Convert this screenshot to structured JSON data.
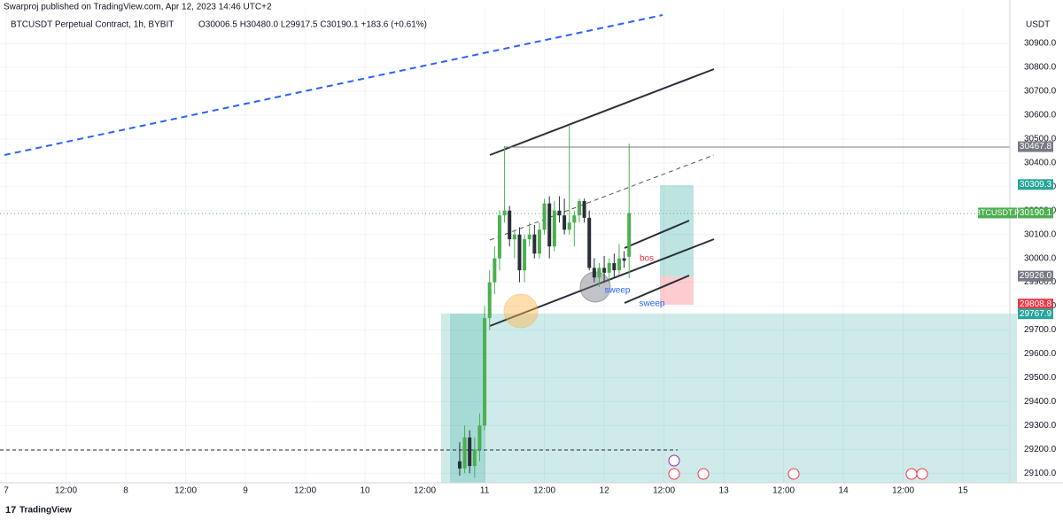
{
  "chart_data": {
    "type": "candlestick",
    "publisher": "Swarproj published on TradingView.com, Apr 12, 2023 14:46 UTC+2",
    "title": "BTCUSDT Perpetual Contract, 1h, BYBIT",
    "ohlc_summary": "O30006.5 H30480.0 L29917.5 C30190.1 +183.6 (+0.61%)",
    "unit": "USDT",
    "brand": "TradingView",
    "up_color": "#4caf50",
    "down_color": "#2a2e39",
    "grid": true,
    "x": [
      91,
      92,
      93,
      94,
      95,
      96,
      97,
      98,
      99,
      100,
      101,
      102,
      103,
      104,
      105,
      106,
      107,
      108,
      109,
      110,
      111,
      112,
      113,
      114,
      115,
      116,
      117,
      118,
      119,
      120,
      121,
      122,
      123,
      124,
      125
    ],
    "open": [
      29150,
      29120,
      29250,
      29130,
      29200,
      29300,
      29750,
      29900,
      30000,
      30180,
      30200,
      30080,
      30100,
      29950,
      30080,
      30100,
      30020,
      30120,
      30230,
      30050,
      30200,
      30180,
      30120,
      30150,
      30180,
      30240,
      30170,
      29960,
      29920,
      29960,
      29940,
      29980,
      29950,
      30000,
      30006.5
    ],
    "high": [
      29230,
      29300,
      29280,
      29250,
      29350,
      29800,
      29950,
      30050,
      30200,
      30470,
      30220,
      30120,
      30130,
      30100,
      30150,
      30140,
      30150,
      30250,
      30260,
      30240,
      30260,
      30250,
      30560,
      30200,
      30250,
      30250,
      30200,
      30000,
      29980,
      30010,
      30000,
      30020,
      30060,
      30030,
      30480.0
    ],
    "low": [
      29090,
      29100,
      29100,
      29080,
      29150,
      29280,
      29700,
      29850,
      29950,
      30150,
      30050,
      30000,
      29900,
      29900,
      30050,
      30000,
      30000,
      30100,
      30000,
      30030,
      30150,
      30100,
      30100,
      30050,
      30150,
      30150,
      29950,
      29900,
      29880,
      29900,
      29900,
      29920,
      29930,
      29960,
      29917.5
    ],
    "close": [
      29120,
      29250,
      29130,
      29200,
      29300,
      29750,
      29900,
      30000,
      30180,
      30200,
      30080,
      30100,
      29950,
      30080,
      30100,
      30020,
      30120,
      30230,
      30050,
      30200,
      30180,
      30120,
      30150,
      30180,
      30240,
      30170,
      29960,
      29920,
      29960,
      29940,
      29980,
      29950,
      30000,
      29990,
      30190.1
    ],
    "xlim": [
      -1.25,
      201.4
    ],
    "xticks": [
      {
        "value": 0,
        "label": "7"
      },
      {
        "value": 12,
        "label": "12:00"
      },
      {
        "value": 24,
        "label": "8"
      },
      {
        "value": 36,
        "label": "12:00"
      },
      {
        "value": 48,
        "label": "9"
      },
      {
        "value": 60,
        "label": "12:00"
      },
      {
        "value": 72,
        "label": "10"
      },
      {
        "value": 84,
        "label": "12:00"
      },
      {
        "value": 96,
        "label": "11"
      },
      {
        "value": 108,
        "label": "12:00"
      },
      {
        "value": 120,
        "label": "12"
      },
      {
        "value": 132,
        "label": "12:00"
      },
      {
        "value": 144,
        "label": "13"
      },
      {
        "value": 156,
        "label": "12:00"
      },
      {
        "value": 168,
        "label": "14"
      },
      {
        "value": 180,
        "label": "12:00"
      },
      {
        "value": 192,
        "label": "15"
      }
    ],
    "ylim": [
      29060,
      31045
    ],
    "yticks": [
      {
        "value": 29100,
        "label": "29100.0"
      },
      {
        "value": 29200,
        "label": "29200.0"
      },
      {
        "value": 29300,
        "label": "29300.0"
      },
      {
        "value": 29400,
        "label": "29400.0"
      },
      {
        "value": 29500,
        "label": "29500.0"
      },
      {
        "value": 29600,
        "label": "29600.0"
      },
      {
        "value": 29700,
        "label": "29700.0"
      },
      {
        "value": 29800,
        "label": "29800.0"
      },
      {
        "value": 29900,
        "label": "29900.0"
      },
      {
        "value": 30000,
        "label": "30000.0"
      },
      {
        "value": 30100,
        "label": "30100.0"
      },
      {
        "value": 30200,
        "label": "30200.0"
      },
      {
        "value": 30300,
        "label": "30300.0"
      },
      {
        "value": 30400,
        "label": "30400.0"
      },
      {
        "value": 30500,
        "label": "30500.0"
      },
      {
        "value": 30600,
        "label": "30600.0"
      },
      {
        "value": 30700,
        "label": "30700.0"
      },
      {
        "value": 30800,
        "label": "30800.0"
      },
      {
        "value": 30900,
        "label": "30900.0"
      }
    ],
    "price_tags": [
      {
        "value": 30467.8,
        "label": "30467.8",
        "color": "#787b86"
      },
      {
        "value": 30309.3,
        "label": "30309.3",
        "color": "#26a69a"
      },
      {
        "value": 30190.1,
        "label": "30190.1",
        "name": "BTCUSDT.P",
        "color": "#4caf50"
      },
      {
        "value": 29926.0,
        "label": "29926.0",
        "color": "#787b86"
      },
      {
        "value": 29808.8,
        "label": "29808.8",
        "color": "#f23645"
      },
      {
        "value": 29767.9,
        "label": "29767.9",
        "color": "#26a69a"
      }
    ],
    "annotations": [
      {
        "text": "bos",
        "color": "#f23645"
      },
      {
        "text": "sweep",
        "color": "#2962ff"
      },
      {
        "text": "sweep",
        "color": "#2962ff"
      }
    ]
  }
}
